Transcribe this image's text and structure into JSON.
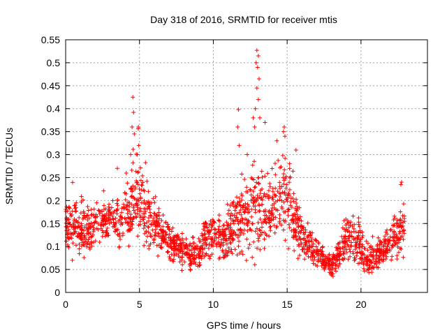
{
  "chart_data": {
    "type": "scatter",
    "title": "Day 318 of 2016, SRMTID for receiver mtis",
    "xlabel": "GPS time / hours",
    "ylabel": "SRMTID / TECUs",
    "xlim": [
      0,
      24.5
    ],
    "ylim": [
      0,
      0.55
    ],
    "x_ticks": [
      0,
      5,
      10,
      15,
      20
    ],
    "x_tick_labels": [
      "0",
      "5",
      "10",
      "15",
      "20"
    ],
    "y_ticks": [
      0,
      0.05,
      0.1,
      0.15,
      0.2,
      0.25,
      0.3,
      0.35,
      0.4,
      0.45,
      0.5,
      0.55
    ],
    "y_tick_labels": [
      "0",
      "0.05",
      "0.1",
      "0.15",
      "0.2",
      "0.25",
      "0.3",
      "0.35",
      "0.4",
      "0.45",
      "0.5",
      "0.55"
    ],
    "grid": true,
    "marker": "plus",
    "series": [
      {
        "name": "SRMTID",
        "color": "#ff0000",
        "envelope_hours": [
          0,
          0.5,
          1,
          1.5,
          2,
          2.5,
          3,
          3.5,
          4,
          4.5,
          5,
          5.5,
          6,
          6.5,
          7,
          7.5,
          8,
          8.5,
          9,
          9.5,
          10,
          10.5,
          11,
          11.5,
          12,
          12.5,
          13,
          13.5,
          14,
          14.5,
          15,
          15.5,
          16,
          16.5,
          17,
          17.5,
          18,
          18.5,
          19,
          19.5,
          20,
          20.5,
          21,
          21.5,
          22,
          22.5,
          23
        ],
        "envelope_center": [
          0.15,
          0.14,
          0.14,
          0.13,
          0.15,
          0.15,
          0.16,
          0.16,
          0.17,
          0.2,
          0.21,
          0.17,
          0.15,
          0.13,
          0.11,
          0.1,
          0.09,
          0.08,
          0.09,
          0.12,
          0.13,
          0.12,
          0.13,
          0.15,
          0.17,
          0.17,
          0.18,
          0.16,
          0.18,
          0.2,
          0.2,
          0.17,
          0.12,
          0.1,
          0.08,
          0.07,
          0.06,
          0.08,
          0.12,
          0.12,
          0.1,
          0.07,
          0.08,
          0.09,
          0.11,
          0.12,
          0.15
        ],
        "envelope_spread": [
          0.04,
          0.05,
          0.05,
          0.04,
          0.04,
          0.04,
          0.04,
          0.05,
          0.06,
          0.08,
          0.08,
          0.06,
          0.05,
          0.04,
          0.04,
          0.03,
          0.03,
          0.03,
          0.03,
          0.04,
          0.04,
          0.04,
          0.05,
          0.06,
          0.08,
          0.08,
          0.09,
          0.07,
          0.07,
          0.08,
          0.08,
          0.06,
          0.04,
          0.03,
          0.03,
          0.02,
          0.02,
          0.03,
          0.05,
          0.05,
          0.04,
          0.03,
          0.03,
          0.03,
          0.04,
          0.05,
          0.05
        ],
        "peaks": [
          {
            "x": 4.55,
            "y": 0.425
          },
          {
            "x": 4.6,
            "y": 0.392
          },
          {
            "x": 4.5,
            "y": 0.36
          },
          {
            "x": 4.65,
            "y": 0.345
          },
          {
            "x": 4.95,
            "y": 0.32
          },
          {
            "x": 4.85,
            "y": 0.3
          },
          {
            "x": 4.4,
            "y": 0.3
          },
          {
            "x": 3.5,
            "y": 0.27
          },
          {
            "x": 12.95,
            "y": 0.527
          },
          {
            "x": 13.05,
            "y": 0.515
          },
          {
            "x": 12.9,
            "y": 0.5
          },
          {
            "x": 13.0,
            "y": 0.49
          },
          {
            "x": 13.1,
            "y": 0.465
          },
          {
            "x": 12.95,
            "y": 0.445
          },
          {
            "x": 13.05,
            "y": 0.42
          },
          {
            "x": 12.85,
            "y": 0.4
          },
          {
            "x": 13.15,
            "y": 0.38
          },
          {
            "x": 11.7,
            "y": 0.398
          },
          {
            "x": 12.7,
            "y": 0.38
          },
          {
            "x": 12.8,
            "y": 0.36
          },
          {
            "x": 11.65,
            "y": 0.36
          },
          {
            "x": 14.8,
            "y": 0.36
          },
          {
            "x": 14.75,
            "y": 0.35
          },
          {
            "x": 14.85,
            "y": 0.34
          },
          {
            "x": 13.5,
            "y": 0.37
          },
          {
            "x": 14.3,
            "y": 0.33
          },
          {
            "x": 15.6,
            "y": 0.31
          },
          {
            "x": 12.3,
            "y": 0.3
          },
          {
            "x": 11.75,
            "y": 0.32
          },
          {
            "x": 22.75,
            "y": 0.24
          },
          {
            "x": 22.7,
            "y": 0.235
          }
        ]
      }
    ]
  }
}
